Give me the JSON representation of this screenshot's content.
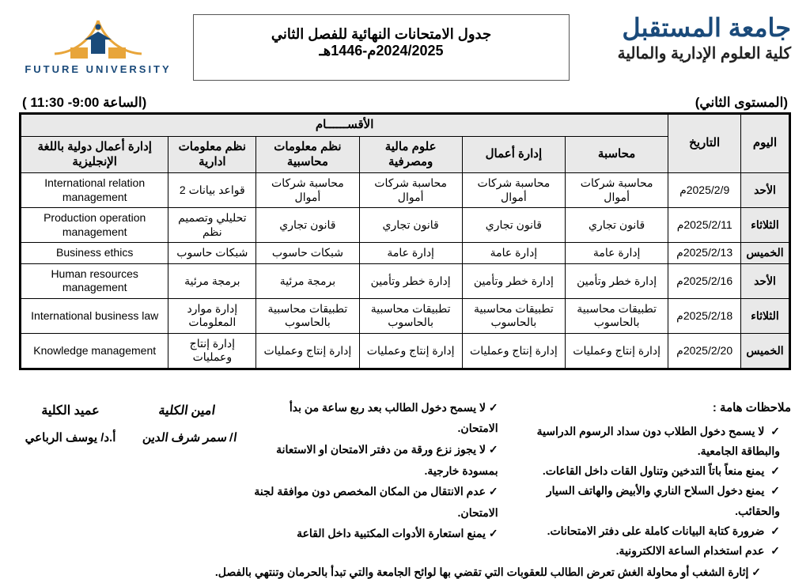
{
  "header": {
    "university_ar": "جامعة المستقبل",
    "faculty_ar": "كلية العلوم الإدارية والمالية",
    "title": "جدول الامتحانات النهائية للفصل الثاني 2024/2025م-1446هـ",
    "logo_en": "FUTURE UNIVERSITY"
  },
  "strip": {
    "level": "(المستوى الثاني)",
    "time": "(الساعة 9:00- 11:30 )"
  },
  "columns": {
    "day": "اليوم",
    "date": "التاريخ",
    "departments_span": "الأقســــــام",
    "depts": [
      "محاسبة",
      "إدارة أعمال",
      "علوم مالية ومصرفية",
      "نظم معلومات محاسبية",
      "نظم معلومات ادارية",
      "إدارة أعمال دولية باللغة الإنجليزية"
    ]
  },
  "rows": [
    {
      "day": "الأحد",
      "date": "2025/2/9م",
      "cells": [
        "محاسبة شركات أموال",
        "محاسبة شركات أموال",
        "محاسبة شركات أموال",
        "محاسبة شركات أموال",
        "قواعد بيانات 2",
        "International relation management"
      ]
    },
    {
      "day": "الثلاثاء",
      "date": "2025/2/11م",
      "cells": [
        "قانون تجاري",
        "قانون تجاري",
        "قانون تجاري",
        "قانون تجاري",
        "تحليلي وتصميم نظم",
        "Production operation management"
      ]
    },
    {
      "day": "الخميس",
      "date": "2025/2/13م",
      "cells": [
        "إدارة عامة",
        "إدارة عامة",
        "إدارة عامة",
        "شبكات حاسوب",
        "شبكات حاسوب",
        "Business ethics"
      ]
    },
    {
      "day": "الأحد",
      "date": "2025/2/16م",
      "cells": [
        "إدارة خطر وتأمين",
        "إدارة خطر وتأمين",
        "إدارة خطر وتأمين",
        "برمجة مرئية",
        "برمجة مرئية",
        "Human resources management"
      ]
    },
    {
      "day": "الثلاثاء",
      "date": "2025/2/18م",
      "cells": [
        "تطبيقات محاسبية بالحاسوب",
        "تطبيقات محاسبية بالحاسوب",
        "تطبيقات محاسبية بالحاسوب",
        "تطبيقات محاسبية بالحاسوب",
        "إدارة موارد المعلومات",
        "International business law"
      ]
    },
    {
      "day": "الخميس",
      "date": "2025/2/20م",
      "cells": [
        "إدارة إنتاج وعمليات",
        "إدارة إنتاج وعمليات",
        "إدارة إنتاج وعمليات",
        "إدارة إنتاج وعمليات",
        "إدارة إنتاج وعمليات",
        "Knowledge management"
      ]
    }
  ],
  "notes_right_title": "ملاحظات هامة :",
  "notes_right": [
    "لا يسمح دخول الطلاب دون سداد الرسوم الدراسية والبطاقة الجامعية.",
    "يمنع منعاً باتاً التدخين وتناول القات داخل القاعات.",
    "يمنع دخول السلاح الناري والأبيض والهاتف السيار والحقائب.",
    "ضرورة كتابة البيانات كاملة على دفتر الامتحانات.",
    "عدم استخدام الساعة الالكترونية."
  ],
  "notes_mid": [
    "لا يسمح دخول الطالب بعد ربع ساعة من بدأ الامتحان.",
    "لا يجوز نزع ورقة من دفتر الامتحان او الاستعانة بمسودة خارجية.",
    "عدم الانتقال من المكان المخصص دون موافقة لجنة الامتحان.",
    "يمنع استعارة الأدوات المكتبية داخل القاعة"
  ],
  "final_note": "إثارة الشغب أو محاولة الغش تعرض الطالب للعقوبات التي تقضي بها لوائح الجامعة والتي تبدأ بالحرمان وتنتهي بالفصل.",
  "sig1": {
    "t": "امين الكلية",
    "n": "ا/ سمر شرف الدين"
  },
  "sig2": {
    "t": "عميد الكلية",
    "n": "أ.د/ يوسف الرباعي"
  },
  "colors": {
    "brand": "#1a4a7a",
    "header_bg": "#e9e9e9"
  }
}
